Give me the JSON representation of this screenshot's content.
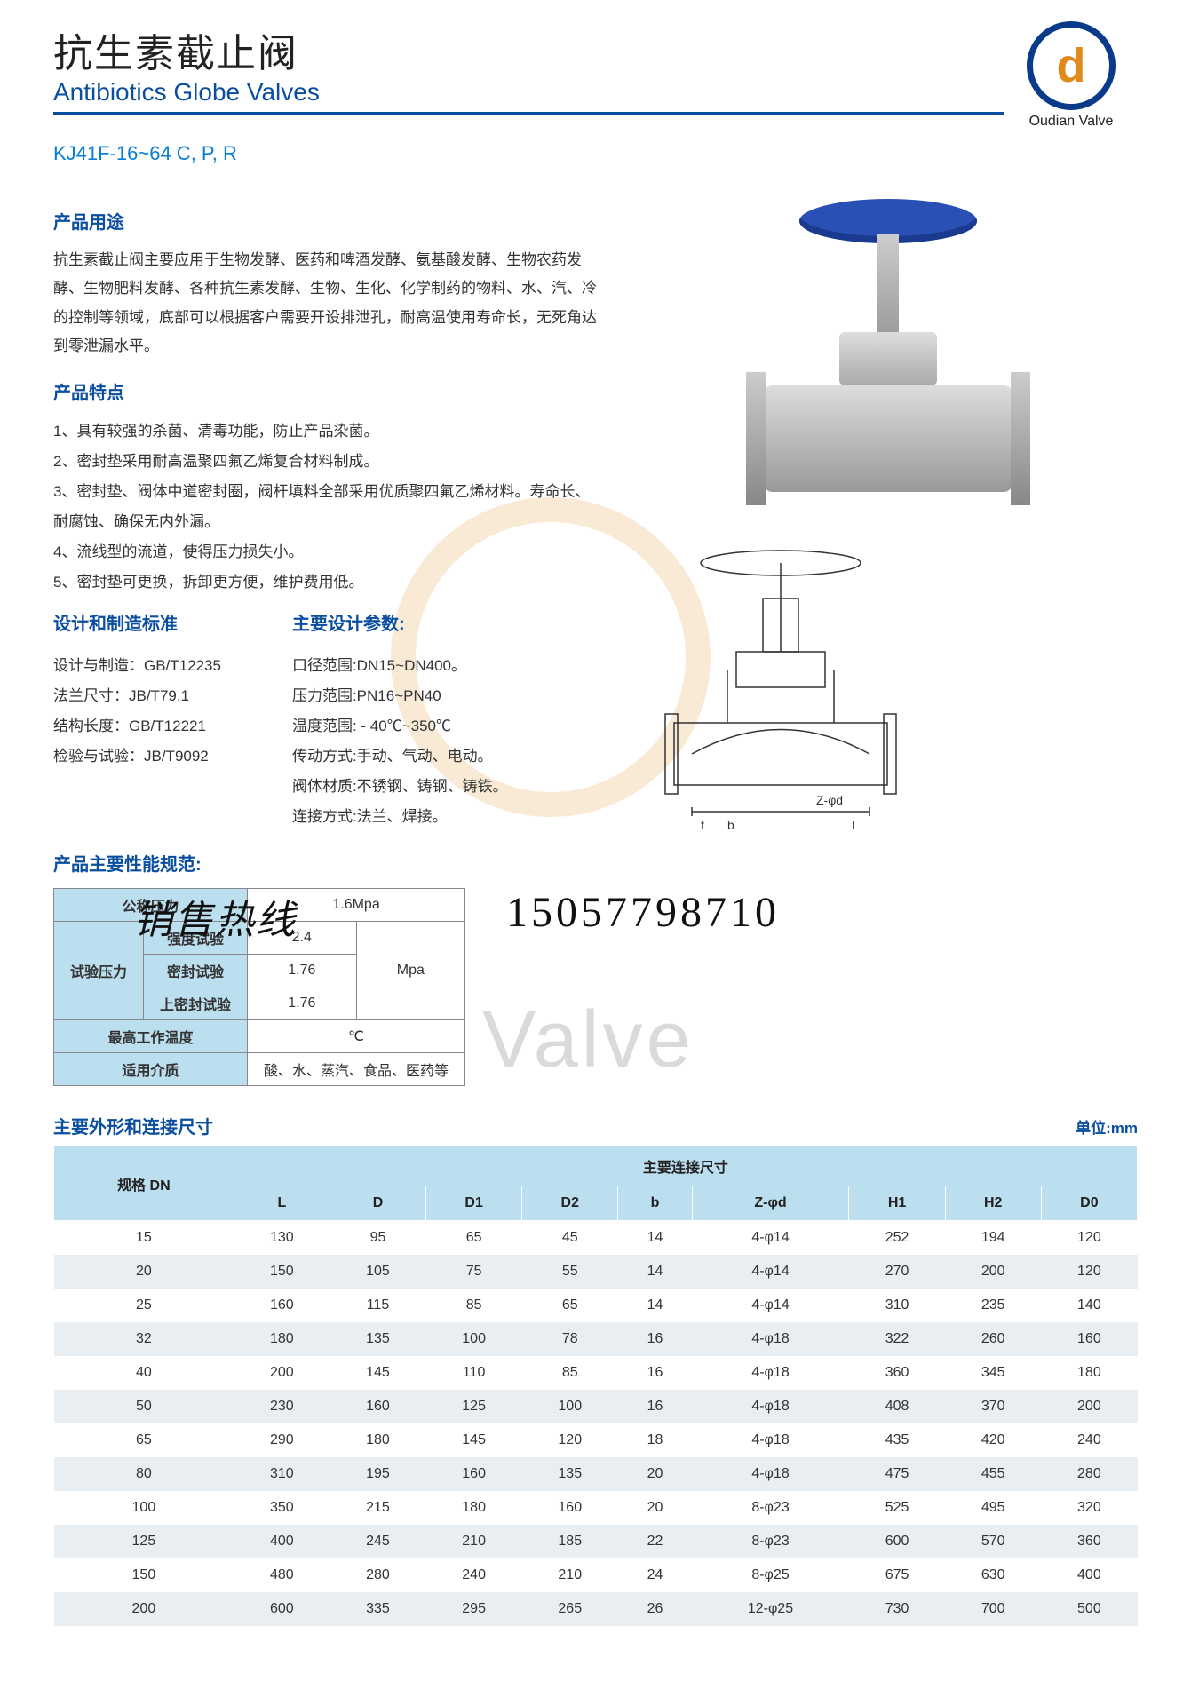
{
  "header": {
    "title_cn": "抗生素截止阀",
    "title_en": "Antibiotics Globe Valves",
    "logo_text": "Oudian Valve",
    "logo_ring_color": "#0a3a8a",
    "logo_d_color": "#e08a1e"
  },
  "model": "KJ41F-16~64 C, P, R",
  "usage": {
    "title": "产品用途",
    "text": "抗生素截止阀主要应用于生物发酵、医药和啤酒发酵、氨基酸发酵、生物农药发酵、生物肥料发酵、各种抗生素发酵、生物、生化、化学制药的物料、水、汽、冷的控制等领域，底部可以根据客户需要开设排泄孔，耐高温使用寿命长，无死角达到零泄漏水平。"
  },
  "features": {
    "title": "产品特点",
    "items": [
      "1、具有较强的杀菌、清毒功能，防止产品染菌。",
      "2、密封垫采用耐高温聚四氟乙烯复合材料制成。",
      "3、密封垫、阀体中道密封圈，阀杆填料全部采用优质聚四氟乙烯材料。寿命长、耐腐蚀、确保无内外漏。",
      "4、流线型的流道，使得压力损失小。",
      "5、密封垫可更换，拆卸更方便，维护费用低。"
    ]
  },
  "standards": {
    "title": "设计和制造标准",
    "rows": [
      "设计与制造：GB/T12235",
      "法兰尺寸：JB/T79.1",
      "结构长度：GB/T12221",
      "检验与试验：JB/T9092"
    ]
  },
  "design_params": {
    "title": "主要设计参数:",
    "rows": [
      "口径范围:DN15~DN400。",
      "压力范围:PN16~PN40",
      "温度范围: - 40℃~350℃",
      "传动方式:手动、气动、电动。",
      "阀体材质:不锈钢、铸钢、铸铁。",
      "连接方式:法兰、焊接。"
    ]
  },
  "perf": {
    "title": "产品主要性能规范:",
    "nominal_pressure_label": "公称压力",
    "nominal_pressure_value": "1.6Mpa",
    "test_pressure_label": "试验压力",
    "strength_label": "强度试验",
    "strength_value": "2.4",
    "seal_label": "密封试验",
    "seal_value": "1.76",
    "upper_seal_label": "上密封试验",
    "upper_seal_value": "1.76",
    "unit": "Mpa",
    "max_temp_label": "最高工作温度",
    "max_temp_unit": "℃",
    "media_label": "适用介质",
    "media_value": "酸、水、蒸汽、食品、医药等"
  },
  "hotline": {
    "label": "销售热线",
    "number": "15057798710"
  },
  "watermark": "Oudian Valve",
  "dim": {
    "title": "主要外形和连接尺寸",
    "unit_label": "单位:mm",
    "header_dn": "规格\nDN",
    "header_main": "主要连接尺寸",
    "columns": [
      "L",
      "D",
      "D1",
      "D2",
      "b",
      "Z-φd",
      "H1",
      "H2",
      "D0"
    ],
    "rows": [
      [
        "15",
        "130",
        "95",
        "65",
        "45",
        "14",
        "4-φ14",
        "252",
        "194",
        "120"
      ],
      [
        "20",
        "150",
        "105",
        "75",
        "55",
        "14",
        "4-φ14",
        "270",
        "200",
        "120"
      ],
      [
        "25",
        "160",
        "115",
        "85",
        "65",
        "14",
        "4-φ14",
        "310",
        "235",
        "140"
      ],
      [
        "32",
        "180",
        "135",
        "100",
        "78",
        "16",
        "4-φ18",
        "322",
        "260",
        "160"
      ],
      [
        "40",
        "200",
        "145",
        "110",
        "85",
        "16",
        "4-φ18",
        "360",
        "345",
        "180"
      ],
      [
        "50",
        "230",
        "160",
        "125",
        "100",
        "16",
        "4-φ18",
        "408",
        "370",
        "200"
      ],
      [
        "65",
        "290",
        "180",
        "145",
        "120",
        "18",
        "4-φ18",
        "435",
        "420",
        "240"
      ],
      [
        "80",
        "310",
        "195",
        "160",
        "135",
        "20",
        "4-φ18",
        "475",
        "455",
        "280"
      ],
      [
        "100",
        "350",
        "215",
        "180",
        "160",
        "20",
        "8-φ23",
        "525",
        "495",
        "320"
      ],
      [
        "125",
        "400",
        "245",
        "210",
        "185",
        "22",
        "8-φ23",
        "600",
        "570",
        "360"
      ],
      [
        "150",
        "480",
        "280",
        "240",
        "210",
        "24",
        "8-φ25",
        "675",
        "630",
        "400"
      ],
      [
        "200",
        "600",
        "335",
        "295",
        "265",
        "26",
        "12-φ25",
        "730",
        "700",
        "500"
      ]
    ]
  },
  "colors": {
    "primary_blue": "#0a4ea0",
    "light_blue": "#bcdff0",
    "pale_blue": "#e3f0f6",
    "row_alt": "#e9eef2",
    "handwheel": "#2a4fb5"
  },
  "drawing_labels": {
    "zd": "Z-φd",
    "f": "f",
    "b": "b",
    "L": "L"
  }
}
